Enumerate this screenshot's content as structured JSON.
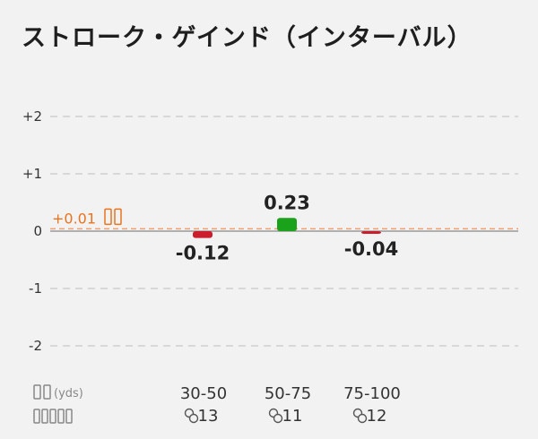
{
  "title": "ストローク・ゲインド（インターバル）",
  "chart_data": {
    "type": "bar",
    "title": "ストローク・ゲインド（インターバル）",
    "categories": [
      "30-50",
      "50-75",
      "75-100"
    ],
    "values": [
      -0.12,
      0.23,
      -0.04
    ],
    "value_labels": [
      "-0.12",
      "0.23",
      "-0.04"
    ],
    "counts": [
      "13",
      "11",
      "12"
    ],
    "ylim": [
      -2.2,
      2.2
    ],
    "yticks": [
      2,
      1,
      0,
      -1,
      -2
    ],
    "ytick_labels": [
      "+2",
      "+1",
      "0",
      "-1",
      "-2"
    ],
    "grid": true,
    "average": 0.01,
    "average_label": "+0.01",
    "x_unit_label": "(yds)",
    "colors": {
      "positive": "#1aa31a",
      "negative": "#cc1d2c",
      "average": "#f0a070",
      "grid": "#cfcfcf",
      "zero_line": "#9a9a9a",
      "average_text": "#e8741e"
    }
  }
}
